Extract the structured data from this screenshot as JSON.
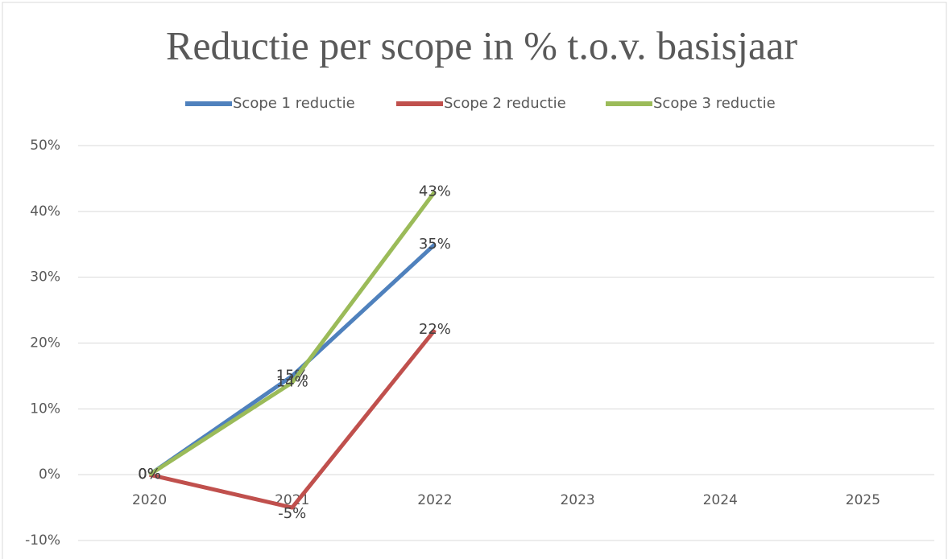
{
  "chart_data": {
    "type": "line",
    "title": "Reductie per scope in % t.o.v. basisjaar",
    "categories": [
      "2020",
      "2021",
      "2022",
      "2023",
      "2024",
      "2025"
    ],
    "series": [
      {
        "name": "Scope 1 reductie",
        "color": "#4f81bd",
        "values": [
          0,
          15,
          35,
          null,
          null,
          null
        ],
        "value_labels": [
          "0%",
          "15%",
          "35%",
          null,
          null,
          null
        ]
      },
      {
        "name": "Scope 2 reductie",
        "color": "#c0504d",
        "values": [
          0,
          -5,
          22,
          null,
          null,
          null
        ],
        "value_labels": [
          "0%",
          "-5%",
          "22%",
          null,
          null,
          null
        ]
      },
      {
        "name": "Scope 3 reductie",
        "color": "#9bbb59",
        "values": [
          0,
          14,
          43,
          null,
          null,
          null
        ],
        "value_labels": [
          "0%",
          "14%",
          "43%",
          null,
          null,
          null
        ]
      }
    ],
    "ylim": [
      -10,
      50
    ],
    "yticks": [
      {
        "value": -10,
        "label": "-10%"
      },
      {
        "value": 0,
        "label": "0%"
      },
      {
        "value": 10,
        "label": "10%"
      },
      {
        "value": 20,
        "label": "20%"
      },
      {
        "value": 30,
        "label": "30%"
      },
      {
        "value": 40,
        "label": "40%"
      },
      {
        "value": 50,
        "label": "50%"
      }
    ],
    "grid": true,
    "legend": "top"
  }
}
